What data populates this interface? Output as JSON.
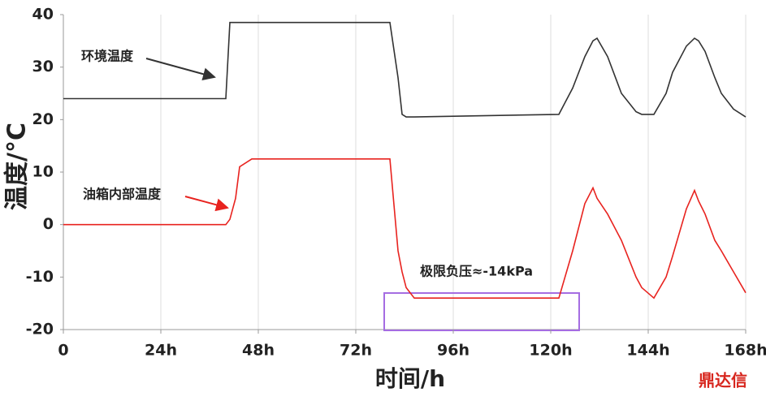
{
  "chart_data": {
    "type": "line",
    "x": [
      0,
      40,
      41,
      42.4,
      43.4,
      46.4,
      80.4,
      82.4,
      83.4,
      84.4,
      86.4,
      122,
      125.4,
      128.4,
      130.4,
      131.4,
      134,
      137.4,
      141,
      142.4,
      145.4,
      148.4,
      150,
      153.4,
      155.4,
      156.4,
      158,
      160.4,
      162,
      165,
      168
    ],
    "series": [
      {
        "name": "环境温度",
        "color": "#333333",
        "values": [
          24,
          24,
          38.5,
          38.5,
          38.5,
          38.5,
          38.5,
          28,
          21,
          20.5,
          20.5,
          21,
          26,
          32,
          35,
          35.5,
          32,
          25,
          21.5,
          21,
          21,
          25,
          29,
          34,
          35.5,
          35,
          33,
          28,
          25,
          22,
          20.5
        ]
      },
      {
        "name": "油箱内部温度",
        "color": "#e8231f",
        "values": [
          0,
          0,
          1,
          5,
          11,
          12.5,
          12.5,
          -5,
          -9,
          -12,
          -14,
          -14,
          -5,
          4,
          7,
          5,
          2,
          -3,
          -10,
          -12,
          -14,
          -10,
          -6,
          3,
          6.5,
          4.5,
          2,
          -3,
          -5,
          -9,
          -13
        ]
      }
    ],
    "xlabel": "时间/h",
    "ylabel": "温度/°C",
    "xlim": [
      0,
      168
    ],
    "xticks": [
      {
        "value": 0,
        "label": "0"
      },
      {
        "value": 24,
        "label": "24h"
      },
      {
        "value": 48,
        "label": "48h"
      },
      {
        "value": 72,
        "label": "72h"
      },
      {
        "value": 96,
        "label": "96h"
      },
      {
        "value": 120,
        "label": "120h"
      },
      {
        "value": 144,
        "label": "144h"
      },
      {
        "value": 168,
        "label": "168h"
      }
    ],
    "ylim": [
      -20,
      40
    ],
    "yticks": [
      -20,
      -10,
      0,
      10,
      20,
      30,
      40
    ],
    "grid": true,
    "annotations": [
      "极限负压≈-14kPa"
    ],
    "watermark": "鼎达信"
  }
}
